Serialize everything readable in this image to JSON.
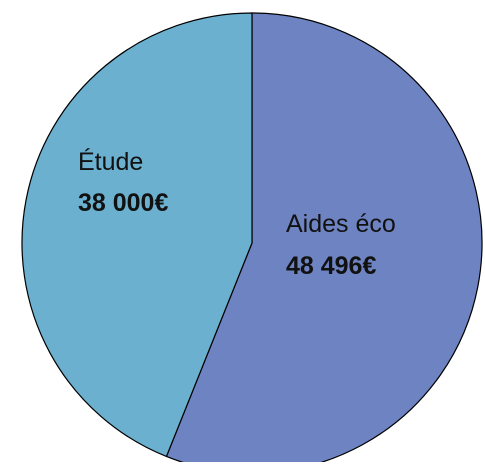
{
  "chart_data": {
    "type": "pie",
    "slices": [
      {
        "label": "Aides éco",
        "value_text": "48 496€",
        "value": 48496,
        "color": "#6e83c2"
      },
      {
        "label": "Étude",
        "value_text": "38 000€",
        "value": 38000,
        "color": "#6bb0cf"
      }
    ],
    "start_angle_deg": 0,
    "direction": "clockwise",
    "edge_color": "#000000"
  }
}
